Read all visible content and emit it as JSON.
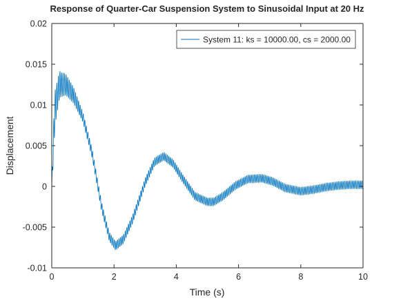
{
  "chart_data": {
    "type": "line",
    "title": "Response of Quarter-Car Suspension System to Sinusoidal Input at 20 Hz",
    "xlabel": "Time (s)",
    "ylabel": "Displacement",
    "xlim": [
      0,
      10
    ],
    "ylim": [
      -0.01,
      0.02
    ],
    "x_ticks": [
      0,
      2,
      4,
      6,
      8,
      10
    ],
    "x_tick_labels": [
      "0",
      "2",
      "4",
      "6",
      "8",
      "10"
    ],
    "y_ticks": [
      -0.01,
      -0.005,
      0,
      0.005,
      0.01,
      0.015,
      0.02
    ],
    "y_tick_labels": [
      "-0.01",
      "-0.005",
      "0",
      "0.005",
      "0.01",
      "0.015",
      "0.02"
    ],
    "grid": false,
    "legend_position": "top-right",
    "input_frequency_hz": 20,
    "series": [
      {
        "name": "System 11: ks = 10000.00, cs = 2000.00",
        "color": "#0072bd",
        "envelope_center": {
          "x": [
            0,
            0.1,
            0.25,
            0.45,
            0.7,
            1.0,
            1.3,
            1.6,
            1.85,
            2.05,
            2.3,
            2.6,
            3.0,
            3.3,
            3.6,
            3.9,
            4.2,
            4.6,
            5.0,
            5.2,
            5.5,
            5.9,
            6.3,
            6.75,
            7.1,
            7.5,
            8.0,
            8.4,
            8.8,
            9.2,
            9.6,
            10.0
          ],
          "y": [
            0,
            0.0095,
            0.0125,
            0.0125,
            0.0112,
            0.0085,
            0.004,
            -0.0025,
            -0.0062,
            -0.0073,
            -0.0065,
            -0.004,
            0.0005,
            0.003,
            0.0037,
            0.0028,
            0.001,
            -0.0012,
            -0.0019,
            -0.0019,
            -0.0012,
            0.0001,
            0.0009,
            0.001,
            0.0006,
            -0.0002,
            -0.0006,
            -0.0004,
            -0.0001,
            0.0001,
            0.0002,
            0.0002
          ]
        },
        "oscillation_amplitude": {
          "x": [
            0,
            0.3,
            1.0,
            3.0,
            10.0
          ],
          "y": [
            0.0025,
            0.0015,
            0.0006,
            0.0005,
            0.0005
          ]
        }
      }
    ]
  }
}
